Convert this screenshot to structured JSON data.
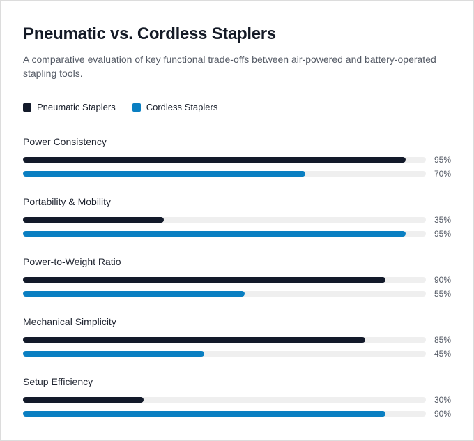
{
  "header": {
    "title": "Pneumatic vs. Cordless Staplers",
    "subtitle": "A comparative evaluation of key functional trade-offs between air-powered and battery-operated stapling tools."
  },
  "legend": [
    {
      "label": "Pneumatic Staplers",
      "color": "#131a2a"
    },
    {
      "label": "Cordless Staplers",
      "color": "#0a7fc2"
    }
  ],
  "chart_data": {
    "type": "bar",
    "orientation": "horizontal",
    "title": "Pneumatic vs. Cordless Staplers",
    "subtitle": "A comparative evaluation of key functional trade-offs between air-powered and battery-operated stapling tools.",
    "categories": [
      "Power Consistency",
      "Portability & Mobility",
      "Power-to-Weight Ratio",
      "Mechanical Simplicity",
      "Setup Efficiency"
    ],
    "series": [
      {
        "name": "Pneumatic Staplers",
        "color": "#131a2a",
        "values": [
          95,
          35,
          90,
          85,
          30
        ],
        "labels": [
          "95%",
          "35%",
          "90%",
          "85%",
          "30%"
        ]
      },
      {
        "name": "Cordless Staplers",
        "color": "#0a7fc2",
        "values": [
          70,
          95,
          55,
          45,
          90
        ],
        "labels": [
          "70%",
          "95%",
          "55%",
          "45%",
          "90%"
        ]
      }
    ],
    "xlim": [
      0,
      100
    ],
    "unit": "%",
    "grid": false,
    "legend_position": "top-left"
  }
}
